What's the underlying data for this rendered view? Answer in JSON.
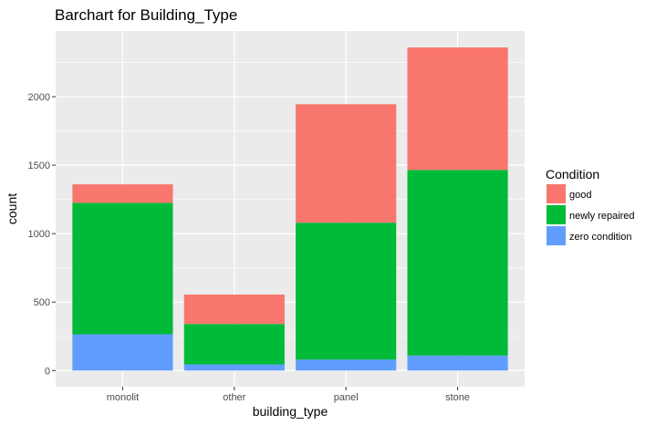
{
  "chart_data": {
    "type": "bar",
    "stacked": true,
    "title": "Barchart for Building_Type",
    "xlabel": "building_type",
    "ylabel": "count",
    "categories": [
      "monolit",
      "other",
      "panel",
      "stone"
    ],
    "series": [
      {
        "name": "good",
        "color": "#F8766D",
        "values": [
          135,
          215,
          865,
          895
        ]
      },
      {
        "name": "newly repaired",
        "color": "#00BA38",
        "values": [
          960,
          295,
          1000,
          1355
        ]
      },
      {
        "name": "zero condition",
        "color": "#619CFF",
        "values": [
          265,
          45,
          80,
          110
        ]
      }
    ],
    "yticks": [
      0,
      500,
      1000,
      1500,
      2000
    ],
    "ytick_labels": [
      "0",
      "500",
      "1000",
      "1500",
      "2000"
    ],
    "ylim": [
      -118,
      2480
    ],
    "grid": true,
    "legend": {
      "title": "Condition",
      "position": "right"
    },
    "colors": {
      "panel_bg": "#EBEBEB",
      "grid": "#FFFFFF"
    }
  }
}
